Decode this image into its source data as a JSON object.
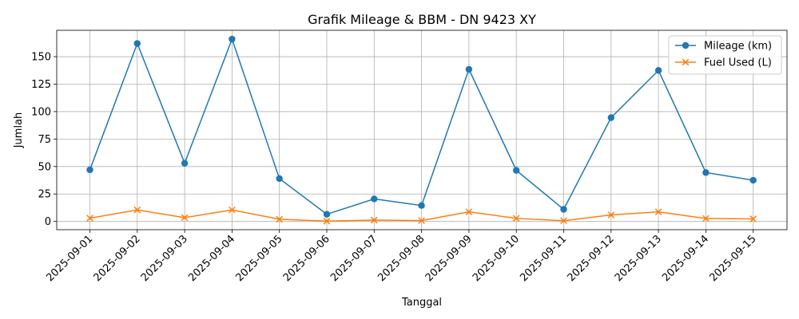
{
  "chart_data": {
    "type": "line",
    "title": "Grafik Mileage & BBM - DN 9423 XY",
    "xlabel": "Tanggal",
    "ylabel": "Jumlah",
    "categories": [
      "2025-09-01",
      "2025-09-02",
      "2025-09-03",
      "2025-09-04",
      "2025-09-05",
      "2025-09-06",
      "2025-09-07",
      "2025-09-08",
      "2025-09-09",
      "2025-09-10",
      "2025-09-11",
      "2025-09-12",
      "2025-09-13",
      "2025-09-14",
      "2025-09-15"
    ],
    "yticks": [
      0,
      25,
      50,
      75,
      100,
      125,
      150
    ],
    "ylim": [
      -7.5,
      174
    ],
    "grid": true,
    "legend_position": "top-right",
    "series": [
      {
        "name": "Mileage (km)",
        "color": "#1f77b4",
        "marker": "circle",
        "values": [
          47,
          162,
          53,
          166,
          39,
          6.5,
          20.5,
          14.5,
          138.5,
          46.5,
          11,
          94.5,
          137.5,
          44.5,
          37.5
        ]
      },
      {
        "name": "Fuel Used (L)",
        "color": "#ff7f0e",
        "marker": "x",
        "values": [
          3,
          10.5,
          3.5,
          10.5,
          2,
          0.3,
          1.2,
          0.8,
          8.7,
          2.8,
          0.7,
          5.9,
          8.7,
          2.7,
          2.3
        ]
      }
    ]
  }
}
